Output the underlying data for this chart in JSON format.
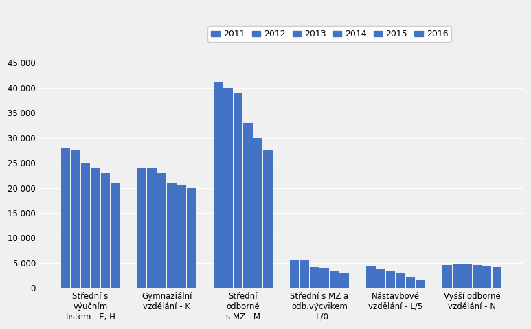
{
  "categories": [
    "Střední s\nvýučním\nlistem - E, H",
    "Gymnaziální\nvzdělání - K",
    "Střední\nodborné\ns MZ - M",
    "Střední s MZ a\nodb.výcvikem\n- L/0",
    "Nástavbové\nvzdělání - L/5",
    "Vyšší odborné\nvzdělání - N"
  ],
  "years": [
    "2011",
    "2012",
    "2013",
    "2014",
    "2015",
    "2016"
  ],
  "values": [
    [
      28000,
      27500,
      25000,
      24000,
      23000,
      21000
    ],
    [
      24000,
      24000,
      23000,
      21000,
      20500,
      20000
    ],
    [
      41000,
      40000,
      39000,
      33000,
      30000,
      27500
    ],
    [
      5700,
      5500,
      4200,
      4000,
      3500,
      3100
    ],
    [
      4500,
      3800,
      3400,
      3000,
      2200,
      1600
    ],
    [
      4600,
      4900,
      4800,
      4600,
      4400,
      4100
    ]
  ],
  "bar_color": "#4472c4",
  "ylim": [
    0,
    47000
  ],
  "yticks": [
    0,
    5000,
    10000,
    15000,
    20000,
    25000,
    30000,
    35000,
    40000,
    45000
  ],
  "background_color": "#f0f0f0",
  "plot_area_color": "#f0f0f0",
  "grid_color": "#ffffff",
  "tick_fontsize": 8.5,
  "legend_fontsize": 9
}
